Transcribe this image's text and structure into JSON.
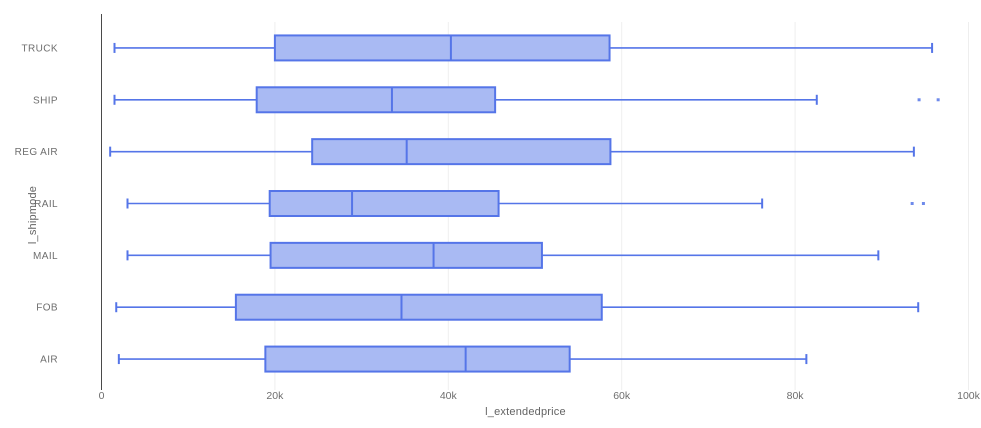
{
  "chart_data": {
    "type": "boxplot",
    "orientation": "horizontal",
    "xlabel": "l_extendedprice",
    "ylabel": "l_shipmode",
    "xlim": [
      0,
      100000
    ],
    "grid": true,
    "legend": false,
    "x_ticks": [
      {
        "value": 0,
        "label": "0"
      },
      {
        "value": 20000,
        "label": "20k"
      },
      {
        "value": 40000,
        "label": "40k"
      },
      {
        "value": 60000,
        "label": "60k"
      },
      {
        "value": 80000,
        "label": "80k"
      },
      {
        "value": 100000,
        "label": "100k"
      }
    ],
    "categories": [
      "TRUCK",
      "SHIP",
      "REG AIR",
      "RAIL",
      "MAIL",
      "FOB",
      "AIR"
    ],
    "series": [
      {
        "category": "TRUCK",
        "min": 1500,
        "q1": 20000,
        "median": 40300,
        "q3": 58600,
        "max": 95800,
        "outliers": []
      },
      {
        "category": "SHIP",
        "min": 1500,
        "q1": 17900,
        "median": 33500,
        "q3": 45400,
        "max": 82500,
        "outliers": [
          94300,
          96500
        ]
      },
      {
        "category": "REG AIR",
        "min": 1000,
        "q1": 24300,
        "median": 35200,
        "q3": 58700,
        "max": 93700,
        "outliers": []
      },
      {
        "category": "RAIL",
        "min": 3000,
        "q1": 19400,
        "median": 28900,
        "q3": 45800,
        "max": 76200,
        "outliers": [
          93500,
          94800
        ]
      },
      {
        "category": "MAIL",
        "min": 3000,
        "q1": 19500,
        "median": 38300,
        "q3": 50800,
        "max": 89600,
        "outliers": []
      },
      {
        "category": "FOB",
        "min": 1700,
        "q1": 15500,
        "median": 34600,
        "q3": 57700,
        "max": 94200,
        "outliers": []
      },
      {
        "category": "AIR",
        "min": 2000,
        "q1": 18900,
        "median": 42000,
        "q3": 54000,
        "max": 81300,
        "outliers": []
      }
    ]
  },
  "colors": {
    "box_fill": "#A9BAF3",
    "box_stroke": "#5575E8",
    "grid_line": "#EEEEEE",
    "axis_line": "#4A4A4A",
    "tick_text": "#6E6E6E",
    "axis_title_text": "#636363",
    "background": "#FFFFFF"
  }
}
